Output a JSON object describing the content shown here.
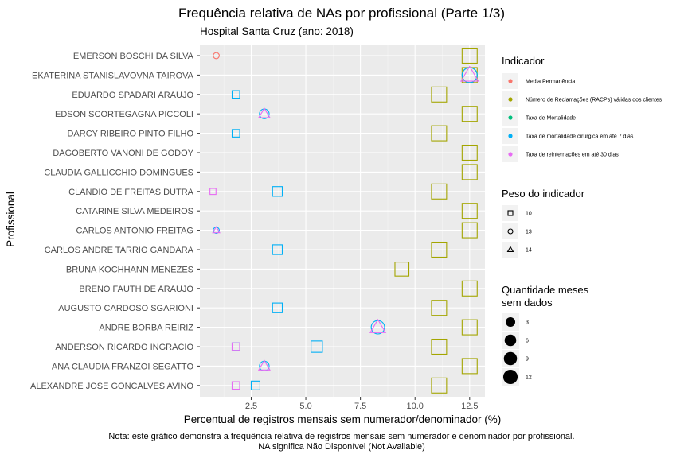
{
  "chart_data": {
    "type": "scatter",
    "title": "Frequência relativa de NAs por profissional (Parte 1/3)",
    "subtitle": "Hospital Santa Cruz (ano: 2018)",
    "xlabel": "Percentual de registros mensais sem numerador/denominador (%)",
    "ylabel": "Profissional",
    "xlim": [
      0.15,
      13.2
    ],
    "xticks": [
      2.5,
      5.0,
      7.5,
      10.0,
      12.5
    ],
    "xtick_labels": [
      "2.5",
      "5.0",
      "7.5",
      "10.0",
      "12.5"
    ],
    "grid": true,
    "legend_position": "right",
    "categories": [
      "EMERSON BOSCHI DA SILVA",
      "EKATERINA STANISLAVOVNA TAIROVA",
      "EDUARDO SPADARI ARAUJO",
      "EDSON SCORTEGAGNA PICCOLI",
      "DARCY RIBEIRO PINTO FILHO",
      "DAGOBERTO VANONI DE GODOY",
      "CLAUDIA GALLICCHIO DOMINGUES",
      "CLANDIO DE FREITAS DUTRA",
      "CATARINE SILVA MEDEIROS",
      "CARLOS ANTONIO FREITAG",
      "CARLOS ANDRE TARRIO GANDARA",
      "BRUNA KOCHHANN MENEZES",
      "BRENO FAUTH DE ARAUJO",
      "AUGUSTO CARDOSO SGARIONI",
      "ANDRE BORBA REIRIZ",
      "ANDERSON RICARDO INGRACIO",
      "ANA CLAUDIA FRANZOI SEGATTO",
      "ALEXANDRE JOSE GONCALVES AVINO"
    ],
    "legend_color": {
      "title": "Indicador",
      "entries": [
        {
          "label": "Media Permanência",
          "color": "#F8766D"
        },
        {
          "label": "Número de Reclamações (RACPs) válidas dos clientes",
          "color": "#A3A500"
        },
        {
          "label": "Taxa de Mortalidade",
          "color": "#00BF7D"
        },
        {
          "label": "Taxa de mortalidade cirúrgica em até 7 dias",
          "color": "#00B0F6"
        },
        {
          "label": "Taxa de reinternações em até 30 dias",
          "color": "#E76BF3"
        }
      ]
    },
    "legend_shape": {
      "title": "Peso do indicador",
      "entries": [
        {
          "label": "10",
          "shape": "square"
        },
        {
          "label": "13",
          "shape": "circle"
        },
        {
          "label": "14",
          "shape": "triangle"
        }
      ]
    },
    "legend_size": {
      "title_lines": [
        "Quantidade meses",
        "sem dados"
      ],
      "entries": [
        {
          "label": "3",
          "value": 3
        },
        {
          "label": "6",
          "value": 6
        },
        {
          "label": "9",
          "value": 9
        },
        {
          "label": "12",
          "value": 12
        }
      ]
    },
    "points": [
      {
        "name": "EMERSON BOSCHI DA SILVA",
        "x": 0.9,
        "series": 0,
        "shape": "circle",
        "months": 1
      },
      {
        "name": "EMERSON BOSCHI DA SILVA",
        "x": 12.5,
        "series": 1,
        "shape": "square",
        "months": 12
      },
      {
        "name": "EKATERINA STANISLAVOVNA TAIROVA",
        "x": 12.5,
        "series": 1,
        "shape": "square",
        "months": 12
      },
      {
        "name": "EKATERINA STANISLAVOVNA TAIROVA",
        "x": 12.5,
        "series": 0,
        "shape": "circle",
        "months": 12
      },
      {
        "name": "EKATERINA STANISLAVOVNA TAIROVA",
        "x": 12.5,
        "series": 2,
        "shape": "circle",
        "months": 12
      },
      {
        "name": "EKATERINA STANISLAVOVNA TAIROVA",
        "x": 12.5,
        "series": 3,
        "shape": "circle",
        "months": 12
      },
      {
        "name": "EKATERINA STANISLAVOVNA TAIROVA",
        "x": 12.5,
        "series": 4,
        "shape": "triangle",
        "months": 12
      },
      {
        "name": "EDUARDO SPADARI ARAUJO",
        "x": 1.8,
        "series": 3,
        "shape": "square",
        "months": 2
      },
      {
        "name": "EDUARDO SPADARI ARAUJO",
        "x": 11.1,
        "series": 1,
        "shape": "square",
        "months": 12
      },
      {
        "name": "EDSON SCORTEGAGNA PICCOLI",
        "x": 3.1,
        "series": 3,
        "shape": "circle",
        "months": 4
      },
      {
        "name": "EDSON SCORTEGAGNA PICCOLI",
        "x": 3.1,
        "series": 4,
        "shape": "triangle",
        "months": 4
      },
      {
        "name": "EDSON SCORTEGAGNA PICCOLI",
        "x": 12.5,
        "series": 1,
        "shape": "square",
        "months": 12
      },
      {
        "name": "DARCY RIBEIRO PINTO FILHO",
        "x": 1.8,
        "series": 3,
        "shape": "square",
        "months": 2
      },
      {
        "name": "DARCY RIBEIRO PINTO FILHO",
        "x": 11.1,
        "series": 1,
        "shape": "square",
        "months": 12
      },
      {
        "name": "DAGOBERTO VANONI DE GODOY",
        "x": 12.5,
        "series": 1,
        "shape": "square",
        "months": 12
      },
      {
        "name": "CLAUDIA GALLICCHIO DOMINGUES",
        "x": 12.5,
        "series": 1,
        "shape": "square",
        "months": 12
      },
      {
        "name": "CLANDIO DE FREITAS DUTRA",
        "x": 0.75,
        "series": 4,
        "shape": "square",
        "months": 1
      },
      {
        "name": "CLANDIO DE FREITAS DUTRA",
        "x": 3.7,
        "series": 3,
        "shape": "square",
        "months": 4
      },
      {
        "name": "CLANDIO DE FREITAS DUTRA",
        "x": 11.1,
        "series": 1,
        "shape": "square",
        "months": 12
      },
      {
        "name": "CATARINE SILVA MEDEIROS",
        "x": 12.5,
        "series": 1,
        "shape": "square",
        "months": 12
      },
      {
        "name": "CARLOS ANTONIO FREITAG",
        "x": 0.9,
        "series": 3,
        "shape": "circle",
        "months": 1
      },
      {
        "name": "CARLOS ANTONIO FREITAG",
        "x": 0.9,
        "series": 4,
        "shape": "triangle",
        "months": 1
      },
      {
        "name": "CARLOS ANTONIO FREITAG",
        "x": 12.5,
        "series": 1,
        "shape": "square",
        "months": 12
      },
      {
        "name": "CARLOS ANDRE TARRIO GANDARA",
        "x": 3.7,
        "series": 3,
        "shape": "square",
        "months": 4
      },
      {
        "name": "CARLOS ANDRE TARRIO GANDARA",
        "x": 11.1,
        "series": 1,
        "shape": "square",
        "months": 12
      },
      {
        "name": "BRUNA KOCHHANN MENEZES",
        "x": 9.4,
        "series": 1,
        "shape": "square",
        "months": 10
      },
      {
        "name": "BRENO FAUTH DE ARAUJO",
        "x": 12.5,
        "series": 1,
        "shape": "square",
        "months": 12
      },
      {
        "name": "AUGUSTO CARDOSO SGARIONI",
        "x": 3.7,
        "series": 3,
        "shape": "square",
        "months": 4
      },
      {
        "name": "AUGUSTO CARDOSO SGARIONI",
        "x": 11.1,
        "series": 1,
        "shape": "square",
        "months": 12
      },
      {
        "name": "ANDRE BORBA REIRIZ",
        "x": 8.3,
        "series": 3,
        "shape": "circle",
        "months": 9
      },
      {
        "name": "ANDRE BORBA REIRIZ",
        "x": 8.3,
        "series": 4,
        "shape": "triangle",
        "months": 9
      },
      {
        "name": "ANDRE BORBA REIRIZ",
        "x": 12.5,
        "series": 1,
        "shape": "square",
        "months": 12
      },
      {
        "name": "ANDERSON RICARDO INGRACIO",
        "x": 1.8,
        "series": 3,
        "shape": "square",
        "months": 2
      },
      {
        "name": "ANDERSON RICARDO INGRACIO",
        "x": 1.8,
        "series": 4,
        "shape": "square",
        "months": 2
      },
      {
        "name": "ANDERSON RICARDO INGRACIO",
        "x": 5.5,
        "series": 3,
        "shape": "square",
        "months": 6
      },
      {
        "name": "ANDERSON RICARDO INGRACIO",
        "x": 11.1,
        "series": 1,
        "shape": "square",
        "months": 12
      },
      {
        "name": "ANA CLAUDIA FRANZOI SEGATTO",
        "x": 3.1,
        "series": 3,
        "shape": "circle",
        "months": 4
      },
      {
        "name": "ANA CLAUDIA FRANZOI SEGATTO",
        "x": 3.1,
        "series": 4,
        "shape": "triangle",
        "months": 4
      },
      {
        "name": "ANA CLAUDIA FRANZOI SEGATTO",
        "x": 12.5,
        "series": 1,
        "shape": "square",
        "months": 12
      },
      {
        "name": "ALEXANDRE JOSE GONCALVES AVINO",
        "x": 1.8,
        "series": 3,
        "shape": "square",
        "months": 2
      },
      {
        "name": "ALEXANDRE JOSE GONCALVES AVINO",
        "x": 1.8,
        "series": 4,
        "shape": "square",
        "months": 2
      },
      {
        "name": "ALEXANDRE JOSE GONCALVES AVINO",
        "x": 2.7,
        "series": 3,
        "shape": "square",
        "months": 3
      },
      {
        "name": "ALEXANDRE JOSE GONCALVES AVINO",
        "x": 11.1,
        "series": 1,
        "shape": "square",
        "months": 12
      }
    ],
    "note_lines": [
      "Nota: este gráfico demonstra a frequência relativa de registros mensais sem numerador e denominador por profissional.",
      "NA significa Não Disponível (Not Available)"
    ]
  }
}
